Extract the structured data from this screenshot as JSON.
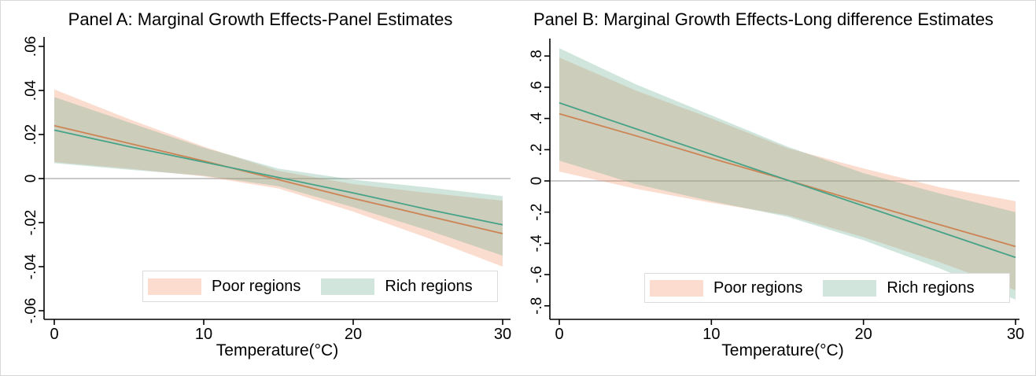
{
  "figure": {
    "background": "#ffffff",
    "border_color": "#d8d8d8",
    "axis_color": "#000000",
    "zero_line_color": "#a9a9a9",
    "text_color": "#000000"
  },
  "chart_data": [
    {
      "type": "line",
      "title": "Panel A: Marginal Growth Effects-Panel Estimates",
      "xlabel": "Temperature(°C)",
      "ylabel": "",
      "xlim": [
        0,
        30
      ],
      "ylim": [
        -0.065,
        0.065
      ],
      "grid": false,
      "zero_reference_line": true,
      "x_ticks": {
        "values": [
          0,
          10,
          20,
          30
        ],
        "labels": [
          "0",
          "10",
          "20",
          "30"
        ]
      },
      "y_ticks": {
        "values": [
          0.06,
          0.04,
          0.02,
          0,
          -0.02,
          -0.04,
          -0.06
        ],
        "labels": [
          ".06",
          ".04",
          ".02",
          "0",
          "-.02",
          "-.04",
          "-.06"
        ]
      },
      "x": [
        0,
        5,
        10,
        15,
        20,
        25,
        30
      ],
      "series": [
        {
          "name": "Poor regions",
          "line_color": "#cc8455",
          "band_color": "rgba(241,142,98,0.30)",
          "swatch_color": "#fbdcce",
          "values": [
            0.024,
            0.016,
            0.008,
            -0.0005,
            -0.009,
            -0.017,
            -0.025
          ],
          "ci_upper": [
            0.0405,
            0.027,
            0.0145,
            0.0035,
            -0.0025,
            -0.0065,
            -0.01
          ],
          "ci_lower": [
            0.0075,
            0.0045,
            0.001,
            -0.0045,
            -0.015,
            -0.027,
            -0.04
          ]
        },
        {
          "name": "Rich regions",
          "line_color": "#47a388",
          "band_color": "rgba(101,168,140,0.30)",
          "swatch_color": "#d2e5dc",
          "values": [
            0.022,
            0.0145,
            0.0075,
            0.0005,
            -0.0065,
            -0.014,
            -0.021
          ],
          "ci_upper": [
            0.037,
            0.0255,
            0.014,
            0.0045,
            -0.0005,
            -0.004,
            -0.008
          ],
          "ci_lower": [
            0.007,
            0.004,
            0.0013,
            -0.0035,
            -0.013,
            -0.0235,
            -0.035
          ]
        }
      ],
      "legend": {
        "position": "bottom-center",
        "labels": [
          "Poor regions",
          "Rich regions"
        ]
      }
    },
    {
      "type": "line",
      "title": "Panel B: Marginal Growth Effects-Long difference Estimates",
      "xlabel": "Temperature(°C)",
      "ylabel": "",
      "xlim": [
        0,
        30
      ],
      "ylim": [
        -0.85,
        0.88
      ],
      "grid": false,
      "zero_reference_line": true,
      "x_ticks": {
        "values": [
          0,
          10,
          20,
          30
        ],
        "labels": [
          "0",
          "10",
          "20",
          "30"
        ]
      },
      "y_ticks": {
        "values": [
          0.8,
          0.6,
          0.4,
          0.2,
          0,
          -0.2,
          -0.4,
          -0.6,
          -0.8
        ],
        "labels": [
          ".8",
          ".6",
          ".4",
          ".2",
          "0",
          "-.2",
          "-.4",
          "-.6",
          "-.8"
        ]
      },
      "x": [
        0,
        5,
        10,
        15,
        20,
        25,
        30
      ],
      "series": [
        {
          "name": "Poor regions",
          "line_color": "#cc8455",
          "band_color": "rgba(241,142,98,0.30)",
          "swatch_color": "#fbdcce",
          "values": [
            0.43,
            0.29,
            0.145,
            0.005,
            -0.14,
            -0.28,
            -0.42
          ],
          "ci_upper": [
            0.79,
            0.58,
            0.4,
            0.21,
            0.08,
            -0.04,
            -0.13
          ],
          "ci_lower": [
            0.06,
            -0.05,
            -0.14,
            -0.22,
            -0.36,
            -0.52,
            -0.7
          ]
        },
        {
          "name": "Rich regions",
          "line_color": "#47a388",
          "band_color": "rgba(101,168,140,0.30)",
          "swatch_color": "#d2e5dc",
          "values": [
            0.5,
            0.335,
            0.17,
            0.005,
            -0.16,
            -0.325,
            -0.49
          ],
          "ci_upper": [
            0.85,
            0.62,
            0.42,
            0.22,
            0.05,
            -0.08,
            -0.2
          ],
          "ci_lower": [
            0.13,
            -0.02,
            -0.13,
            -0.23,
            -0.38,
            -0.56,
            -0.76
          ]
        }
      ],
      "legend": {
        "position": "bottom-center",
        "labels": [
          "Poor regions",
          "Rich regions"
        ]
      }
    }
  ]
}
